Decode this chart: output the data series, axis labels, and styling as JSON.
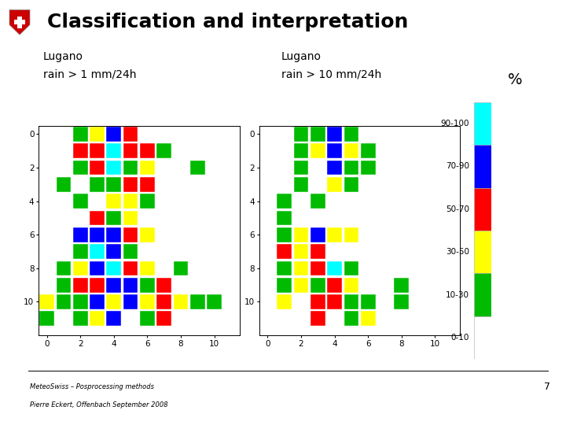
{
  "title": "Classification and interpretation",
  "label1": "Lugano\nrain > 1 mm/24h",
  "label2": "Lugano\nrain > 10 mm/24h",
  "footer1": "MeteoSwiss – Posprocessing methods",
  "footer2": "Pierre Eckert, Offenbach September 2008",
  "page_number": "7",
  "legend_labels": [
    "90-100",
    "70-90",
    "50-70",
    "30-50",
    "10-30",
    "0-10"
  ],
  "legend_colors": [
    "#00FFFF",
    "#0000FF",
    "#FF0000",
    "#FFFF00",
    "#00BB00",
    "#FFFFFF"
  ],
  "grid1": {
    "cells": [
      [
        2,
        0,
        "green"
      ],
      [
        3,
        0,
        "yellow"
      ],
      [
        4,
        0,
        "blue"
      ],
      [
        5,
        0,
        "red"
      ],
      [
        2,
        1,
        "red"
      ],
      [
        3,
        1,
        "red"
      ],
      [
        4,
        1,
        "cyan"
      ],
      [
        5,
        1,
        "red"
      ],
      [
        6,
        1,
        "red"
      ],
      [
        7,
        1,
        "green"
      ],
      [
        2,
        2,
        "green"
      ],
      [
        3,
        2,
        "red"
      ],
      [
        4,
        2,
        "cyan"
      ],
      [
        5,
        2,
        "green"
      ],
      [
        6,
        2,
        "yellow"
      ],
      [
        9,
        2,
        "green"
      ],
      [
        1,
        3,
        "green"
      ],
      [
        3,
        3,
        "green"
      ],
      [
        4,
        3,
        "green"
      ],
      [
        5,
        3,
        "red"
      ],
      [
        6,
        3,
        "red"
      ],
      [
        2,
        4,
        "green"
      ],
      [
        4,
        4,
        "yellow"
      ],
      [
        5,
        4,
        "yellow"
      ],
      [
        6,
        4,
        "green"
      ],
      [
        3,
        5,
        "red"
      ],
      [
        4,
        5,
        "green"
      ],
      [
        5,
        5,
        "yellow"
      ],
      [
        2,
        6,
        "blue"
      ],
      [
        3,
        6,
        "blue"
      ],
      [
        4,
        6,
        "blue"
      ],
      [
        5,
        6,
        "red"
      ],
      [
        6,
        6,
        "yellow"
      ],
      [
        2,
        7,
        "green"
      ],
      [
        3,
        7,
        "cyan"
      ],
      [
        4,
        7,
        "blue"
      ],
      [
        5,
        7,
        "green"
      ],
      [
        1,
        8,
        "green"
      ],
      [
        2,
        8,
        "yellow"
      ],
      [
        3,
        8,
        "blue"
      ],
      [
        4,
        8,
        "cyan"
      ],
      [
        5,
        8,
        "red"
      ],
      [
        6,
        8,
        "yellow"
      ],
      [
        8,
        8,
        "green"
      ],
      [
        1,
        9,
        "green"
      ],
      [
        2,
        9,
        "red"
      ],
      [
        3,
        9,
        "red"
      ],
      [
        4,
        9,
        "blue"
      ],
      [
        5,
        9,
        "blue"
      ],
      [
        6,
        9,
        "green"
      ],
      [
        7,
        9,
        "red"
      ],
      [
        0,
        10,
        "yellow"
      ],
      [
        1,
        10,
        "green"
      ],
      [
        2,
        10,
        "green"
      ],
      [
        3,
        10,
        "blue"
      ],
      [
        4,
        10,
        "yellow"
      ],
      [
        5,
        10,
        "blue"
      ],
      [
        6,
        10,
        "yellow"
      ],
      [
        7,
        10,
        "red"
      ],
      [
        8,
        10,
        "yellow"
      ],
      [
        9,
        10,
        "green"
      ],
      [
        10,
        10,
        "green"
      ],
      [
        0,
        11,
        "green"
      ],
      [
        2,
        11,
        "green"
      ],
      [
        3,
        11,
        "yellow"
      ],
      [
        4,
        11,
        "blue"
      ],
      [
        6,
        11,
        "green"
      ],
      [
        7,
        11,
        "red"
      ]
    ]
  },
  "grid2": {
    "cells": [
      [
        2,
        0,
        "green"
      ],
      [
        3,
        0,
        "green"
      ],
      [
        4,
        0,
        "blue"
      ],
      [
        5,
        0,
        "green"
      ],
      [
        2,
        1,
        "green"
      ],
      [
        3,
        1,
        "yellow"
      ],
      [
        4,
        1,
        "blue"
      ],
      [
        5,
        1,
        "yellow"
      ],
      [
        6,
        1,
        "green"
      ],
      [
        2,
        2,
        "green"
      ],
      [
        4,
        2,
        "blue"
      ],
      [
        5,
        2,
        "green"
      ],
      [
        6,
        2,
        "green"
      ],
      [
        2,
        3,
        "green"
      ],
      [
        4,
        3,
        "yellow"
      ],
      [
        5,
        3,
        "green"
      ],
      [
        1,
        4,
        "green"
      ],
      [
        3,
        4,
        "green"
      ],
      [
        1,
        5,
        "green"
      ],
      [
        1,
        6,
        "green"
      ],
      [
        2,
        6,
        "yellow"
      ],
      [
        3,
        6,
        "blue"
      ],
      [
        4,
        6,
        "yellow"
      ],
      [
        5,
        6,
        "yellow"
      ],
      [
        1,
        7,
        "red"
      ],
      [
        2,
        7,
        "yellow"
      ],
      [
        3,
        7,
        "red"
      ],
      [
        1,
        8,
        "green"
      ],
      [
        2,
        8,
        "yellow"
      ],
      [
        3,
        8,
        "red"
      ],
      [
        4,
        8,
        "cyan"
      ],
      [
        5,
        8,
        "green"
      ],
      [
        1,
        9,
        "green"
      ],
      [
        2,
        9,
        "yellow"
      ],
      [
        3,
        9,
        "green"
      ],
      [
        4,
        9,
        "red"
      ],
      [
        5,
        9,
        "yellow"
      ],
      [
        8,
        9,
        "green"
      ],
      [
        1,
        10,
        "yellow"
      ],
      [
        3,
        10,
        "red"
      ],
      [
        4,
        10,
        "red"
      ],
      [
        5,
        10,
        "green"
      ],
      [
        6,
        10,
        "green"
      ],
      [
        8,
        10,
        "green"
      ],
      [
        3,
        11,
        "red"
      ],
      [
        5,
        11,
        "green"
      ],
      [
        6,
        11,
        "yellow"
      ]
    ]
  }
}
